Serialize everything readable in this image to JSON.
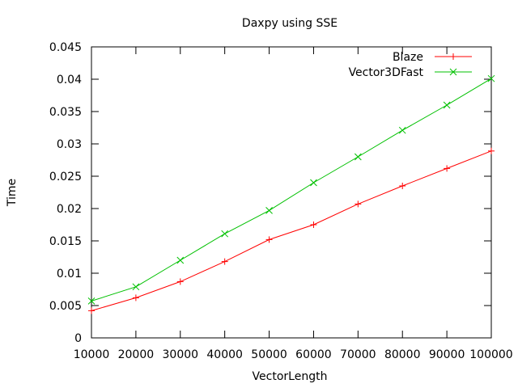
{
  "chart_data": {
    "type": "line",
    "title": "Daxpy using SSE",
    "xlabel": "VectorLength",
    "ylabel": "Time",
    "xlim": [
      10000,
      100000
    ],
    "ylim": [
      0,
      0.045
    ],
    "x_ticks": [
      10000,
      20000,
      30000,
      40000,
      50000,
      60000,
      70000,
      80000,
      90000,
      100000
    ],
    "x_tick_labels": [
      "10000",
      "20000",
      "30000",
      "40000",
      "50000",
      "60000",
      "70000",
      "80000",
      "90000",
      "100000"
    ],
    "y_ticks": [
      0,
      0.005,
      0.01,
      0.015,
      0.02,
      0.025,
      0.03,
      0.035,
      0.04,
      0.045
    ],
    "y_tick_labels": [
      "0",
      "0.005",
      "0.01",
      "0.015",
      "0.02",
      "0.025",
      "0.03",
      "0.035",
      "0.04",
      "0.045"
    ],
    "grid": false,
    "legend_position": "top-right",
    "x": [
      10000,
      20000,
      30000,
      40000,
      50000,
      60000,
      70000,
      80000,
      90000,
      100000
    ],
    "series": [
      {
        "name": "Blaze",
        "color": "#ff0000",
        "marker": "plus",
        "values": [
          0.0042,
          0.0062,
          0.0087,
          0.0118,
          0.0152,
          0.0175,
          0.0207,
          0.0235,
          0.0262,
          0.0289
        ]
      },
      {
        "name": "Vector3DFast",
        "color": "#00c000",
        "marker": "cross",
        "values": [
          0.0057,
          0.0079,
          0.012,
          0.0161,
          0.0197,
          0.024,
          0.028,
          0.0321,
          0.036,
          0.0401
        ]
      }
    ]
  }
}
